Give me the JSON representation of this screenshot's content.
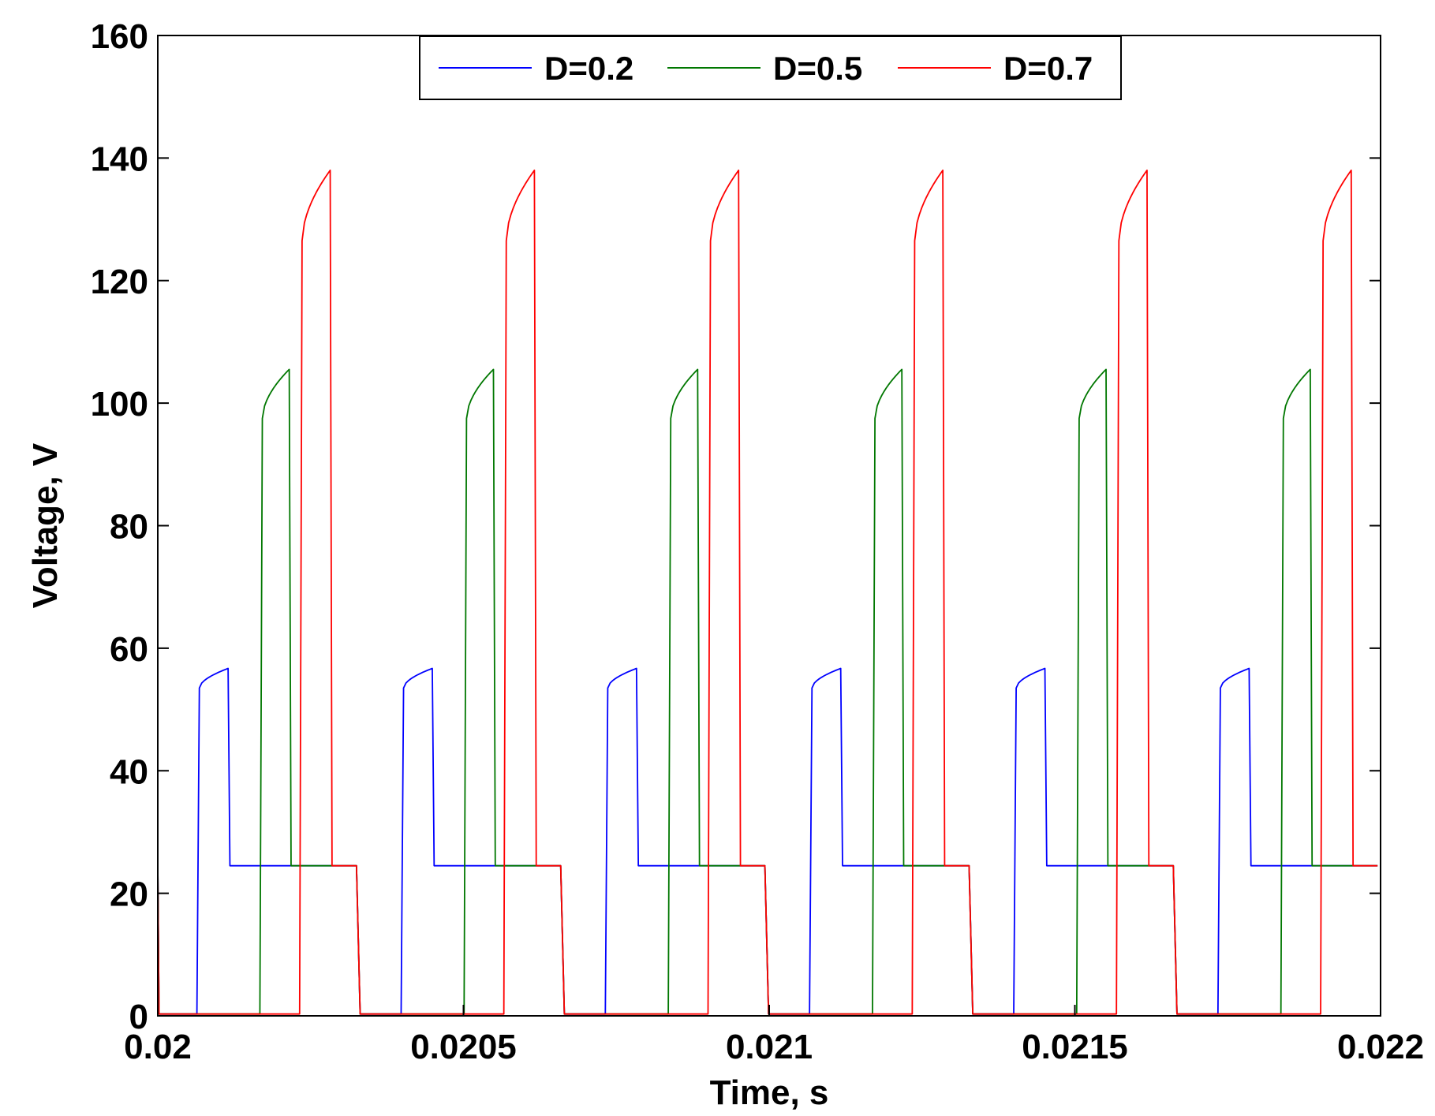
{
  "chart_data": {
    "type": "line",
    "title": "",
    "xlabel": "Time, s",
    "ylabel": "Voltage, V",
    "xlim": [
      0.02,
      0.022
    ],
    "ylim": [
      0,
      160
    ],
    "xticks": [
      0.02,
      0.0205,
      0.021,
      0.0215,
      0.022
    ],
    "xtick_labels": [
      "0.02",
      "0.0205",
      "0.021",
      "0.0215",
      "0.022"
    ],
    "yticks": [
      0,
      20,
      40,
      60,
      80,
      100,
      120,
      140,
      160
    ],
    "ytick_labels": [
      "0",
      "20",
      "40",
      "60",
      "80",
      "100",
      "120",
      "140",
      "160"
    ],
    "grid": false,
    "legend_position": "top-center",
    "period": 0.000334,
    "series": [
      {
        "name": "D=0.2",
        "color": "#0000ff",
        "duty": 0.2,
        "low_level": 0.3,
        "plateau_level": 24.5,
        "rise_start": 53.5,
        "peak": 56.7,
        "pulse_times": [
          0.020064,
          0.020398,
          0.020732,
          0.021066,
          0.0214,
          0.021734
        ],
        "pulse_end_times": [
          0.020115,
          0.020449,
          0.020783,
          0.021117,
          0.021451,
          0.021785
        ]
      },
      {
        "name": "D=0.5",
        "color": "#007700",
        "duty": 0.5,
        "low_level": 0.3,
        "plateau_level": 24.5,
        "rise_start": 97.5,
        "peak": 105.5,
        "pulse_times": [
          0.020167,
          0.020501,
          0.020835,
          0.021169,
          0.021503,
          0.021837
        ],
        "pulse_end_times": [
          0.020215,
          0.020549,
          0.020883,
          0.021217,
          0.021551,
          0.021885
        ]
      },
      {
        "name": "D=0.7",
        "color": "#ff0000",
        "duty": 0.7,
        "low_level": 0.3,
        "plateau_level": 24.5,
        "rise_start": 126.5,
        "peak": 138,
        "pulse_times": [
          0.020232,
          0.020566,
          0.0209,
          0.021234,
          0.021568,
          0.021902
        ],
        "pulse_end_times": [
          0.020282,
          0.020616,
          0.02095,
          0.021284,
          0.021618,
          0.021952
        ],
        "fall_times": [
          0.020325,
          0.020659,
          0.020993,
          0.021327,
          0.021661,
          0.021995
        ]
      }
    ]
  }
}
